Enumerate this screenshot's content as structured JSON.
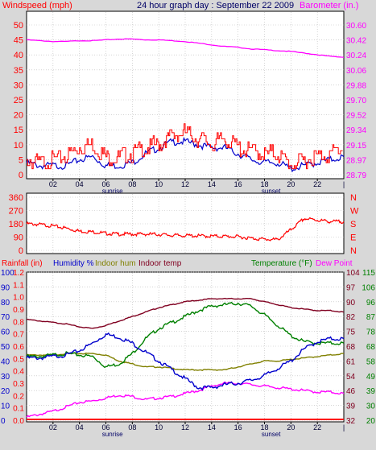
{
  "header": {
    "left": "Windspeed (mph)",
    "center": "24 hour graph day : September 22 2009",
    "right": "Barometer (in.)"
  },
  "colors": {
    "background": "#d8d8d8",
    "wind": "#ff0000",
    "gust_avg": "#0000cc",
    "barometer": "#ff00ff",
    "direction": "#ff0000",
    "rain": "#ff0000",
    "humidity": "#0000cc",
    "indoor_hum": "#808000",
    "indoor_temp": "#800020",
    "temperature": "#008000",
    "dewpoint": "#ff00ff",
    "nesw": "#ff0000"
  },
  "x_axis": {
    "ticks": [
      "02",
      "04",
      "06",
      "08",
      "10",
      "12",
      "14",
      "16",
      "18",
      "20",
      "22"
    ],
    "sunrise_label": "sunrise",
    "sunset_label": "sunset",
    "sunrise_hour": 6.5,
    "sunset_hour": 18.5
  },
  "chart_data": [
    {
      "type": "line",
      "title": "24 hour graph day : September 22 2009",
      "ylabel_left": "Windspeed (mph)",
      "ylabel_right": "Barometer (in.)",
      "left_ticks": [
        "50",
        "45",
        "40",
        "35",
        "30",
        "25",
        "20",
        "15",
        "10",
        "5",
        "0"
      ],
      "right_ticks": [
        "30.60",
        "30.42",
        "30.24",
        "30.06",
        "29.88",
        "29.70",
        "29.52",
        "29.34",
        "29.15",
        "28.97",
        "28.79"
      ],
      "ylim_left": [
        0,
        50
      ],
      "ylim_right": [
        28.79,
        30.6
      ],
      "x": [
        0,
        1,
        2,
        3,
        4,
        5,
        6,
        7,
        8,
        9,
        10,
        11,
        12,
        13,
        14,
        15,
        16,
        17,
        18,
        19,
        20,
        21,
        22,
        23,
        24
      ],
      "series": [
        {
          "name": "Windspeed",
          "axis": "left",
          "values": [
            5,
            4,
            5,
            6,
            9,
            10,
            6,
            6,
            7,
            9,
            10,
            13,
            14,
            12,
            10,
            12,
            9,
            8,
            7,
            7,
            3,
            5,
            6,
            7,
            9
          ]
        },
        {
          "name": "Wind average",
          "axis": "left",
          "values": [
            4,
            3,
            3,
            3,
            5,
            6,
            3,
            3,
            4,
            7,
            9,
            11,
            11,
            10,
            9,
            9,
            7,
            5,
            4,
            4,
            2,
            3,
            4,
            5,
            6
          ]
        },
        {
          "name": "Barometer",
          "axis": "right",
          "values": [
            30.42,
            30.41,
            30.4,
            30.4,
            30.41,
            30.41,
            30.42,
            30.43,
            30.43,
            30.42,
            30.42,
            30.41,
            30.4,
            30.38,
            30.36,
            30.34,
            30.33,
            30.31,
            30.3,
            30.29,
            30.28,
            30.26,
            30.24,
            30.22,
            30.21
          ]
        }
      ]
    },
    {
      "type": "line",
      "ylabel_left": "",
      "left_ticks": [
        "360",
        "270",
        "180",
        "90",
        "0"
      ],
      "right_labels": [
        "N",
        "W",
        "S",
        "E",
        "N"
      ],
      "ylim": [
        0,
        360
      ],
      "x": [
        0,
        1,
        2,
        3,
        4,
        5,
        6,
        7,
        8,
        9,
        10,
        11,
        12,
        13,
        14,
        15,
        16,
        17,
        18,
        19,
        20,
        21,
        22,
        23,
        24
      ],
      "series": [
        {
          "name": "Wind direction",
          "values": [
            180,
            175,
            165,
            150,
            130,
            125,
            115,
            110,
            110,
            110,
            108,
            102,
            100,
            98,
            96,
            95,
            92,
            82,
            75,
            72,
            140,
            215,
            205,
            195,
            195
          ]
        }
      ]
    },
    {
      "type": "line",
      "labels": {
        "rainfall": "Rainfall (in)",
        "humidity": "Humidity %",
        "indoor_hum": "Indoor hum",
        "indoor_temp": "Indoor temp",
        "temperature": "Temperature (°F)",
        "dewpoint": "Dew Point"
      },
      "left_ticks_rain": [
        "1.2",
        "1.1",
        "1.0",
        "0.9",
        "0.8",
        "0.7",
        "0.6",
        "0.5",
        "0.4",
        "0.3",
        "0.2",
        "0.1",
        "0.0"
      ],
      "left_ticks_humidity": [
        "100",
        "90",
        "80",
        "70",
        "60",
        "50",
        "40",
        "30",
        "20",
        "10",
        "0"
      ],
      "right_ticks_temp": [
        "115",
        "106",
        "96",
        "87",
        "78",
        "68",
        "58",
        "49",
        "39",
        "30",
        "20"
      ],
      "right_ticks_dew": [
        "104",
        "97",
        "90",
        "82",
        "75",
        "68",
        "61",
        "54",
        "46",
        "39",
        "32"
      ],
      "ylim_humidity": [
        0,
        100
      ],
      "x": [
        0,
        1,
        2,
        3,
        4,
        5,
        6,
        7,
        8,
        9,
        10,
        11,
        12,
        13,
        14,
        15,
        16,
        17,
        18,
        19,
        20,
        21,
        22,
        23,
        24
      ],
      "series": [
        {
          "name": "Humidity",
          "axis": "humidity",
          "values": [
            42,
            42,
            43,
            44,
            47,
            52,
            58,
            56,
            52,
            46,
            40,
            34,
            28,
            22,
            22,
            24,
            25,
            27,
            30,
            35,
            40,
            48,
            53,
            55,
            55
          ]
        },
        {
          "name": "Indoor hum",
          "axis": "humidity",
          "values": [
            44,
            44,
            44,
            45,
            45,
            45,
            44,
            40,
            38,
            36,
            36,
            35,
            34,
            34,
            34,
            34,
            36,
            38,
            40,
            40,
            41,
            42,
            43,
            44,
            45
          ]
        },
        {
          "name": "Indoor temp",
          "axis": "humidity",
          "values": [
            68,
            67,
            66,
            65,
            63,
            62,
            64,
            67,
            70,
            73,
            76,
            78,
            80,
            81,
            82,
            82,
            82,
            82,
            80,
            78,
            76,
            75,
            74,
            74,
            73
          ]
        },
        {
          "name": "Temperature",
          "axis": "humidity",
          "values": [
            43,
            43,
            44,
            45,
            44,
            43,
            36,
            38,
            45,
            55,
            62,
            66,
            70,
            74,
            77,
            78,
            79,
            77,
            71,
            64,
            57,
            53,
            52,
            52,
            52
          ]
        },
        {
          "name": "Dew Point",
          "axis": "humidity",
          "values": [
            2,
            4,
            6,
            9,
            12,
            13,
            15,
            17,
            16,
            14,
            15,
            16,
            18,
            20,
            23,
            25,
            25,
            24,
            23,
            22,
            21,
            20,
            19,
            19,
            18
          ]
        },
        {
          "name": "Rainfall",
          "axis": "rain",
          "values": [
            0,
            0,
            0,
            0,
            0,
            0,
            0,
            0,
            0,
            0,
            0,
            0,
            0,
            0,
            0,
            0,
            0,
            0,
            0,
            0,
            0,
            0,
            0,
            0,
            0
          ]
        }
      ]
    }
  ]
}
